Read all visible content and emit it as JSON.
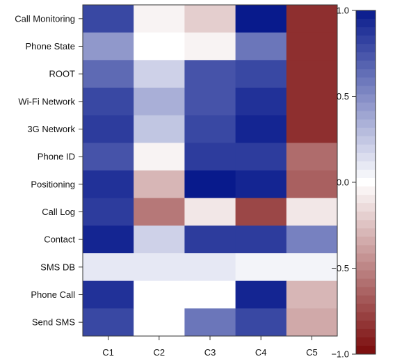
{
  "chart_data": {
    "type": "heatmap",
    "title": "",
    "xlabel": "",
    "ylabel": "",
    "columns": [
      "C1",
      "C2",
      "C3",
      "C4",
      "C5"
    ],
    "rows": [
      "Call Monitoring",
      "Phone State",
      "ROOT",
      "Wi-Fi Network",
      "3G Network",
      "Phone ID",
      "Positioning",
      "Call Log",
      "Contact",
      "SMS DB",
      "Phone Call",
      "Send SMS"
    ],
    "values": [
      [
        0.8,
        -0.05,
        -0.2,
        1.0,
        -0.85
      ],
      [
        0.45,
        0.0,
        -0.05,
        0.6,
        -0.85
      ],
      [
        0.65,
        0.2,
        0.75,
        0.8,
        -0.85
      ],
      [
        0.8,
        0.35,
        0.75,
        0.9,
        -0.85
      ],
      [
        0.85,
        0.25,
        0.8,
        0.95,
        -0.85
      ],
      [
        0.75,
        -0.05,
        0.85,
        0.85,
        -0.6
      ],
      [
        0.9,
        -0.3,
        1.0,
        0.95,
        -0.65
      ],
      [
        0.85,
        -0.55,
        -0.1,
        -0.75,
        -0.1
      ],
      [
        0.95,
        0.2,
        0.85,
        0.85,
        0.55
      ],
      [
        0.1,
        0.1,
        0.1,
        0.05,
        0.05
      ],
      [
        0.9,
        0.0,
        0.0,
        0.95,
        -0.3
      ],
      [
        0.8,
        0.0,
        0.6,
        0.8,
        -0.35
      ]
    ],
    "colorbar": {
      "ticks": [
        "1.0",
        "0.5",
        "0.0",
        "−0.5",
        "−1.0"
      ],
      "tick_values": [
        1.0,
        0.5,
        0.0,
        -0.5,
        -1.0
      ],
      "range": [
        -1.0,
        1.0
      ],
      "high_color": "#081a8c",
      "mid_color": "#ffffff",
      "low_color": "#7a0a0a",
      "steps": 41
    }
  }
}
